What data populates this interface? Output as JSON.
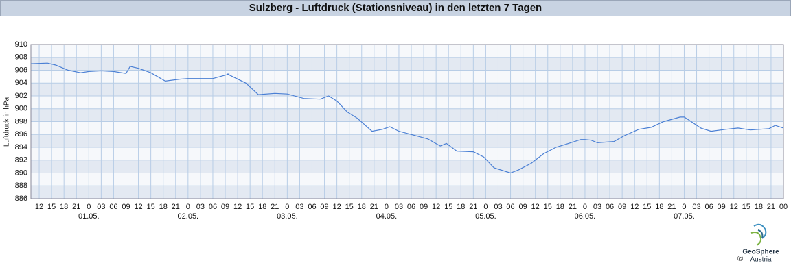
{
  "chart_data": {
    "type": "line",
    "title": "Sulzberg - Luftdruck (Stationsniveau) in den letzten 7 Tagen",
    "y_label": "Luftdruck in hPa",
    "x": [
      -14,
      -10,
      -8,
      -5,
      -2,
      0,
      3,
      6,
      9,
      10,
      12,
      15,
      18.5,
      22,
      24,
      30,
      34,
      33.5,
      38,
      41,
      45,
      48,
      52,
      56,
      58,
      60,
      62.5,
      65,
      68.5,
      71,
      72.8,
      75,
      78,
      82,
      85,
      86.5,
      89,
      93,
      95.5,
      98,
      102,
      104,
      107,
      110,
      113,
      116,
      119,
      120,
      121.5,
      123,
      127,
      129.5,
      133,
      136,
      139,
      143,
      144,
      145,
      148,
      150.5,
      154,
      157,
      160,
      164.5,
      166,
      168
    ],
    "series": [
      {
        "name": "Luftdruck",
        "color": "#4a7fd4",
        "values": [
          907.0,
          907.1,
          906.8,
          906.0,
          905.6,
          905.8,
          905.9,
          905.8,
          905.5,
          906.6,
          906.3,
          905.6,
          904.3,
          904.6,
          904.7,
          904.7,
          905.4,
          905.4,
          904.0,
          902.2,
          902.4,
          902.3,
          901.6,
          901.5,
          902.0,
          901.2,
          899.5,
          898.5,
          896.5,
          896.8,
          897.2,
          896.5,
          896.0,
          895.3,
          894.2,
          894.6,
          893.4,
          893.3,
          892.5,
          890.8,
          890.0,
          890.5,
          891.5,
          893.0,
          894.0,
          894.6,
          895.2,
          895.2,
          895.1,
          894.7,
          894.9,
          895.8,
          896.8,
          897.1,
          898.0,
          898.7,
          898.7,
          898.3,
          897.0,
          896.5,
          896.8,
          897.0,
          896.7,
          896.9,
          897.4,
          897.0
        ]
      }
    ],
    "xlim": [
      -14,
      168
    ],
    "xticks": [
      {
        "value": -12,
        "label": "12"
      },
      {
        "value": -9,
        "label": "15"
      },
      {
        "value": -6,
        "label": "18"
      },
      {
        "value": -3,
        "label": "21"
      },
      0,
      {
        "value": 3,
        "label": "03"
      },
      {
        "value": 6,
        "label": "06"
      },
      {
        "value": 9,
        "label": "09"
      },
      {
        "value": 12,
        "label": "12"
      },
      {
        "value": 15,
        "label": "15"
      },
      {
        "value": 18,
        "label": "18"
      },
      {
        "value": 21,
        "label": "21"
      },
      {
        "value": 24,
        "label": "0"
      },
      {
        "value": 27,
        "label": "03"
      },
      {
        "value": 30,
        "label": "06"
      },
      {
        "value": 33,
        "label": "09"
      },
      {
        "value": 36,
        "label": "12"
      },
      {
        "value": 39,
        "label": "15"
      },
      {
        "value": 42,
        "label": "18"
      },
      {
        "value": 45,
        "label": "21"
      },
      {
        "value": 48,
        "label": "0"
      },
      {
        "value": 51,
        "label": "03"
      },
      {
        "value": 54,
        "label": "06"
      },
      {
        "value": 57,
        "label": "09"
      },
      {
        "value": 60,
        "label": "12"
      },
      {
        "value": 63,
        "label": "15"
      },
      {
        "value": 66,
        "label": "18"
      },
      {
        "value": 69,
        "label": "21"
      },
      {
        "value": 72,
        "label": "0"
      },
      {
        "value": 75,
        "label": "03"
      },
      {
        "value": 78,
        "label": "06"
      },
      {
        "value": 81,
        "label": "09"
      },
      {
        "value": 84,
        "label": "12"
      },
      {
        "value": 87,
        "label": "15"
      },
      {
        "value": 90,
        "label": "18"
      },
      {
        "value": 93,
        "label": "21"
      },
      {
        "value": 96,
        "label": "0"
      },
      {
        "value": 99,
        "label": "03"
      },
      {
        "value": 102,
        "label": "06"
      },
      {
        "value": 105,
        "label": "09"
      },
      {
        "value": 108,
        "label": "12"
      },
      {
        "value": 111,
        "label": "15"
      },
      {
        "value": 114,
        "label": "18"
      },
      {
        "value": 117,
        "label": "21"
      },
      {
        "value": 120,
        "label": "0"
      },
      {
        "value": 123,
        "label": "03"
      },
      {
        "value": 126,
        "label": "06"
      },
      {
        "value": 129,
        "label": "09"
      },
      {
        "value": 132,
        "label": "12"
      },
      {
        "value": 135,
        "label": "15"
      },
      {
        "value": 138,
        "label": "18"
      },
      {
        "value": 141,
        "label": "21"
      },
      {
        "value": 144,
        "label": "0"
      },
      {
        "value": 147,
        "label": "03"
      },
      {
        "value": 150,
        "label": "06"
      },
      {
        "value": 153,
        "label": "09"
      },
      {
        "value": 156,
        "label": "12"
      },
      {
        "value": 159,
        "label": "15"
      },
      {
        "value": 162,
        "label": "18"
      },
      {
        "value": 165,
        "label": "21"
      },
      {
        "value": 168,
        "label": "00"
      }
    ],
    "date_labels": [
      {
        "value": 0,
        "label": "01.05."
      },
      {
        "value": 24,
        "label": "02.05."
      },
      {
        "value": 48,
        "label": "03.05."
      },
      {
        "value": 72,
        "label": "04.05."
      },
      {
        "value": 96,
        "label": "05.05."
      },
      {
        "value": 120,
        "label": "06.05."
      },
      {
        "value": 144,
        "label": "07.05."
      }
    ],
    "ylim": [
      886,
      910
    ],
    "yticks": [
      886,
      888,
      890,
      892,
      894,
      896,
      898,
      900,
      902,
      904,
      906,
      908,
      910
    ],
    "grid": true
  },
  "logo": {
    "copyright": "©",
    "name": "GeoSphere",
    "subname": "Austria"
  }
}
